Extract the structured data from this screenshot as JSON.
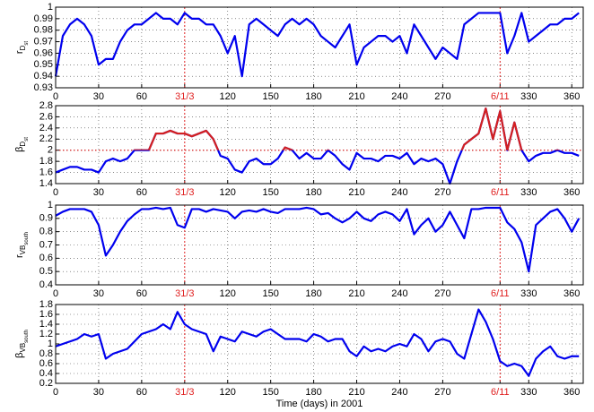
{
  "chart_data": [
    {
      "type": "line",
      "ylabel": [
        "r",
        "D",
        "st"
      ],
      "x": [
        0,
        5,
        10,
        15,
        20,
        25,
        30,
        35,
        40,
        45,
        50,
        55,
        60,
        65,
        70,
        75,
        80,
        85,
        90,
        95,
        100,
        105,
        110,
        115,
        120,
        125,
        130,
        135,
        140,
        145,
        150,
        155,
        160,
        165,
        170,
        175,
        180,
        185,
        190,
        195,
        200,
        205,
        210,
        215,
        220,
        225,
        230,
        235,
        240,
        245,
        250,
        255,
        260,
        265,
        270,
        275,
        280,
        285,
        290,
        295,
        300,
        305,
        310,
        315,
        320,
        325,
        330,
        335,
        340,
        345,
        350,
        355,
        360,
        365
      ],
      "series": [
        {
          "color": "#0000ee",
          "values": [
            0.94,
            0.975,
            0.985,
            0.99,
            0.985,
            0.975,
            0.95,
            0.955,
            0.955,
            0.97,
            0.98,
            0.985,
            0.985,
            0.99,
            0.995,
            0.99,
            0.99,
            0.985,
            0.995,
            0.99,
            0.99,
            0.985,
            0.985,
            0.975,
            0.96,
            0.975,
            0.94,
            0.985,
            0.99,
            0.985,
            0.98,
            0.975,
            0.985,
            0.99,
            0.985,
            0.99,
            0.985,
            0.975,
            0.97,
            0.965,
            0.975,
            0.985,
            0.95,
            0.965,
            0.97,
            0.975,
            0.975,
            0.97,
            0.975,
            0.96,
            0.985,
            0.975,
            0.965,
            0.955,
            0.965,
            0.96,
            0.955,
            0.985,
            0.99,
            0.995,
            0.995,
            0.995,
            0.995,
            0.96,
            0.975,
            0.995,
            0.97,
            0.975,
            0.98,
            0.985,
            0.985,
            0.99,
            0.99,
            0.995
          ]
        }
      ],
      "xlim": [
        0,
        368
      ],
      "xticks": [
        0,
        30,
        60,
        {
          "value": 90,
          "label": "31/3"
        },
        120,
        150,
        180,
        210,
        240,
        270,
        {
          "value": 310,
          "label": "6/11"
        },
        330,
        360
      ],
      "ylim": [
        0.93,
        1
      ],
      "yticks": [
        0.93,
        0.94,
        0.95,
        0.96,
        0.97,
        0.98,
        0.99,
        1
      ],
      "grid": true,
      "event_lines": {
        "x": [
          90,
          310
        ],
        "color": "#e02020"
      }
    },
    {
      "type": "line",
      "ylabel": [
        "β",
        "D",
        "st"
      ],
      "x": [
        0,
        5,
        10,
        15,
        20,
        25,
        30,
        35,
        40,
        45,
        50,
        55,
        60,
        65,
        70,
        75,
        80,
        85,
        90,
        95,
        100,
        105,
        110,
        115,
        120,
        125,
        130,
        135,
        140,
        145,
        150,
        155,
        160,
        165,
        170,
        175,
        180,
        185,
        190,
        195,
        200,
        205,
        210,
        215,
        220,
        225,
        230,
        235,
        240,
        245,
        250,
        255,
        260,
        265,
        270,
        275,
        280,
        285,
        290,
        295,
        300,
        305,
        310,
        315,
        320,
        325,
        330,
        335,
        340,
        345,
        350,
        355,
        360,
        365
      ],
      "series": [
        {
          "color": "#0000ee",
          "values": [
            1.6,
            1.65,
            1.7,
            1.7,
            1.65,
            1.65,
            1.6,
            1.8,
            1.85,
            1.8,
            1.85,
            2.0,
            2.0,
            2.0,
            2.3,
            2.3,
            2.35,
            2.3,
            2.3,
            2.25,
            2.3,
            2.35,
            2.2,
            1.9,
            1.85,
            1.65,
            1.6,
            1.8,
            1.85,
            1.75,
            1.75,
            1.85,
            2.05,
            2.0,
            1.85,
            1.95,
            1.85,
            1.85,
            2.0,
            1.9,
            1.75,
            1.65,
            1.95,
            1.85,
            1.85,
            1.8,
            1.9,
            1.9,
            1.85,
            1.95,
            1.75,
            1.85,
            1.8,
            1.85,
            1.75,
            1.4,
            1.8,
            2.1,
            2.2,
            2.3,
            2.75,
            2.2,
            2.7,
            2.0,
            2.5,
            2.0,
            1.8,
            1.9,
            1.95,
            1.95,
            2.0,
            1.95,
            1.95,
            1.9
          ]
        }
      ],
      "xlim": [
        0,
        368
      ],
      "xticks": [
        0,
        30,
        60,
        {
          "value": 90,
          "label": "31/3"
        },
        120,
        150,
        180,
        210,
        240,
        270,
        {
          "value": 310,
          "label": "6/11"
        },
        330,
        360
      ],
      "ylim": [
        1.4,
        2.8
      ],
      "yticks": [
        1.4,
        1.6,
        1.8,
        2,
        2.2,
        2.4,
        2.6,
        2.8
      ],
      "grid": true,
      "threshold": {
        "value": 2,
        "color": "#d42020"
      },
      "event_lines": {
        "x": [
          90,
          310
        ],
        "color": "#e02020"
      }
    },
    {
      "type": "line",
      "ylabel": [
        "r",
        "VB",
        "south"
      ],
      "x": [
        0,
        5,
        10,
        15,
        20,
        25,
        30,
        35,
        40,
        45,
        50,
        55,
        60,
        65,
        70,
        75,
        80,
        85,
        90,
        95,
        100,
        105,
        110,
        115,
        120,
        125,
        130,
        135,
        140,
        145,
        150,
        155,
        160,
        165,
        170,
        175,
        180,
        185,
        190,
        195,
        200,
        205,
        210,
        215,
        220,
        225,
        230,
        235,
        240,
        245,
        250,
        255,
        260,
        265,
        270,
        275,
        280,
        285,
        290,
        295,
        300,
        305,
        310,
        315,
        320,
        325,
        330,
        335,
        340,
        345,
        350,
        355,
        360,
        365
      ],
      "series": [
        {
          "color": "#0000ee",
          "values": [
            0.92,
            0.95,
            0.97,
            0.97,
            0.97,
            0.95,
            0.85,
            0.62,
            0.7,
            0.8,
            0.88,
            0.93,
            0.97,
            0.97,
            0.98,
            0.97,
            0.98,
            0.85,
            0.83,
            0.97,
            0.97,
            0.95,
            0.97,
            0.96,
            0.95,
            0.9,
            0.95,
            0.96,
            0.95,
            0.97,
            0.95,
            0.94,
            0.97,
            0.97,
            0.97,
            0.98,
            0.97,
            0.93,
            0.94,
            0.9,
            0.87,
            0.9,
            0.95,
            0.9,
            0.88,
            0.93,
            0.95,
            0.93,
            0.88,
            0.97,
            0.78,
            0.85,
            0.9,
            0.8,
            0.85,
            0.95,
            0.85,
            0.75,
            0.97,
            0.97,
            0.98,
            0.98,
            0.98,
            0.87,
            0.82,
            0.72,
            0.5,
            0.85,
            0.9,
            0.95,
            0.97,
            0.9,
            0.8,
            0.9
          ]
        }
      ],
      "xlim": [
        0,
        368
      ],
      "xticks": [
        0,
        30,
        60,
        {
          "value": 90,
          "label": "31/3"
        },
        120,
        150,
        180,
        210,
        240,
        270,
        {
          "value": 310,
          "label": "6/11"
        },
        330,
        360
      ],
      "ylim": [
        0.4,
        1
      ],
      "yticks": [
        0.4,
        0.5,
        0.6,
        0.7,
        0.8,
        0.9,
        1
      ],
      "grid": true,
      "event_lines": {
        "x": [
          90,
          310
        ],
        "color": "#e02020"
      }
    },
    {
      "type": "line",
      "ylabel": [
        "β",
        "VB",
        "south"
      ],
      "xlabel": "Time (days) in 2001",
      "x": [
        0,
        5,
        10,
        15,
        20,
        25,
        30,
        35,
        40,
        45,
        50,
        55,
        60,
        65,
        70,
        75,
        80,
        85,
        90,
        95,
        100,
        105,
        110,
        115,
        120,
        125,
        130,
        135,
        140,
        145,
        150,
        155,
        160,
        165,
        170,
        175,
        180,
        185,
        190,
        195,
        200,
        205,
        210,
        215,
        220,
        225,
        230,
        235,
        240,
        245,
        250,
        255,
        260,
        265,
        270,
        275,
        280,
        285,
        290,
        295,
        300,
        305,
        310,
        315,
        320,
        325,
        330,
        335,
        340,
        345,
        350,
        355,
        360,
        365
      ],
      "series": [
        {
          "color": "#0000ee",
          "values": [
            0.95,
            1.0,
            1.05,
            1.1,
            1.2,
            1.15,
            1.2,
            0.7,
            0.8,
            0.85,
            0.9,
            1.05,
            1.2,
            1.25,
            1.3,
            1.4,
            1.3,
            1.65,
            1.4,
            1.3,
            1.25,
            1.2,
            0.85,
            1.15,
            1.1,
            1.05,
            1.25,
            1.2,
            1.15,
            1.25,
            1.3,
            1.2,
            1.1,
            1.1,
            1.1,
            1.05,
            1.2,
            1.15,
            1.05,
            1.1,
            1.1,
            0.85,
            0.75,
            0.95,
            0.85,
            0.9,
            0.85,
            0.95,
            1.0,
            0.95,
            1.2,
            1.1,
            0.85,
            1.05,
            1.1,
            1.05,
            0.8,
            0.7,
            1.2,
            1.7,
            1.45,
            1.1,
            0.65,
            0.55,
            0.6,
            0.55,
            0.35,
            0.7,
            0.85,
            0.95,
            0.75,
            0.7,
            0.75,
            0.75
          ]
        }
      ],
      "xlim": [
        0,
        368
      ],
      "xticks": [
        0,
        30,
        60,
        {
          "value": 90,
          "label": "31/3"
        },
        120,
        150,
        180,
        210,
        240,
        270,
        {
          "value": 310,
          "label": "6/11"
        },
        330,
        360
      ],
      "ylim": [
        0.2,
        1.8
      ],
      "yticks": [
        0.2,
        0.4,
        0.6,
        0.8,
        1,
        1.2,
        1.4,
        1.6,
        1.8
      ],
      "grid": true,
      "event_lines": {
        "x": [
          90,
          310
        ],
        "color": "#e02020"
      }
    }
  ]
}
